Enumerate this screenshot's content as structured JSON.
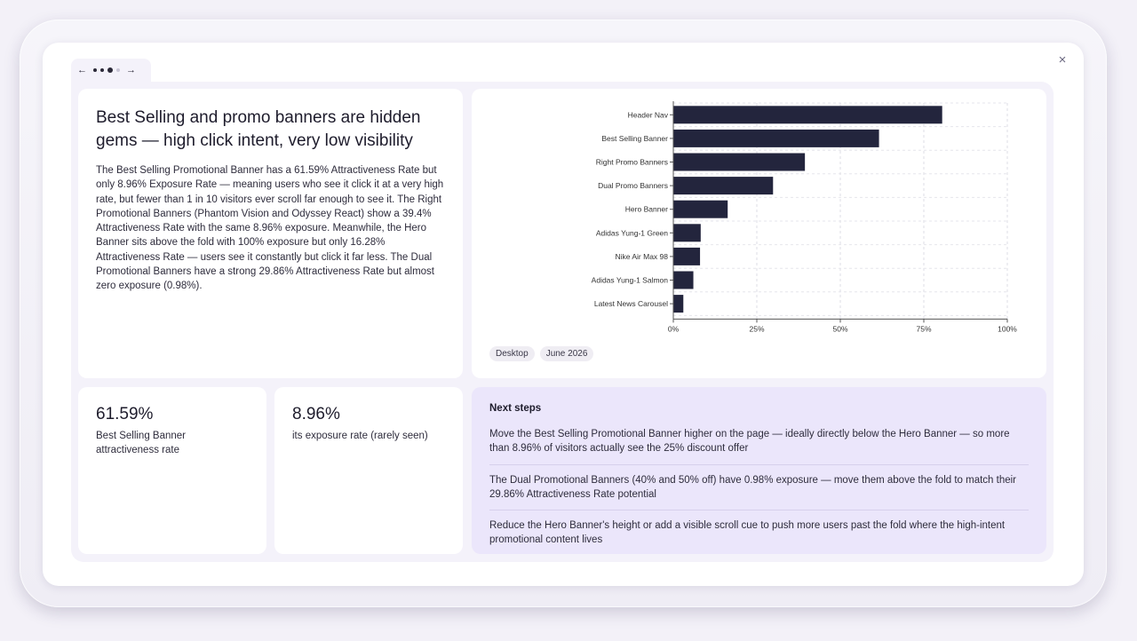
{
  "modal": {
    "close_label": "×"
  },
  "slide_nav": {
    "prev_label": "←",
    "next_label": "→",
    "slides": 4,
    "active_slide": 3
  },
  "insight": {
    "headline": "Best Selling and promo banners are hidden gems — high click intent, very low visibility",
    "body": "The Best Selling Promotional Banner has a 61.59% Attractiveness Rate but only 8.96% Exposure Rate — meaning users who see it click it at a very high rate, but fewer than 1 in 10 visitors ever scroll far enough to see it. The Right Promotional Banners (Phantom Vision and Odyssey React) show a 39.4% Attractiveness Rate with the same 8.96% exposure. Meanwhile, the Hero Banner sits above the fold with 100% exposure but only 16.28% Attractiveness Rate — users see it constantly but click it far less. The Dual Promotional Banners have a strong 29.86% Attractiveness Rate but almost zero exposure (0.98%)."
  },
  "chart_card": {
    "tags": [
      "Desktop",
      "June 2026"
    ]
  },
  "chart_data": {
    "type": "bar",
    "orientation": "horizontal",
    "categories": [
      "Header Nav",
      "Best Selling Banner",
      "Right Promo Banners",
      "Dual Promo Banners",
      "Hero Banner",
      "Adidas Yung-1 Green",
      "Nike Air Max 98",
      "Adidas Yung-1 Salmon",
      "Latest News Carousel"
    ],
    "values": [
      80.5,
      61.59,
      39.4,
      29.86,
      16.28,
      8.2,
      8.0,
      6.0,
      3.0
    ],
    "xlim": [
      0,
      100
    ],
    "x_ticks": [
      "0%",
      "25%",
      "50%",
      "75%",
      "100%"
    ],
    "grid": true,
    "bar_color": "#23253d",
    "title": "",
    "xlabel": "",
    "ylabel": ""
  },
  "stats": [
    {
      "value": "61.59%",
      "label": "Best Selling Banner attractiveness rate"
    },
    {
      "value": "8.96%",
      "label": "its exposure rate (rarely seen)"
    }
  ],
  "next_steps": {
    "title": "Next steps",
    "items": [
      "Move the Best Selling Promotional Banner higher on the page — ideally directly below the Hero Banner — so more than 8.96% of visitors actually see the 25% discount offer",
      "The Dual Promotional Banners (40% and 50% off) have 0.98% exposure — move them above the fold to match their 29.86% Attractiveness Rate potential",
      "Reduce the Hero Banner's height or add a visible scroll cue to push more users past the fold where the high-intent promotional content lives"
    ]
  }
}
